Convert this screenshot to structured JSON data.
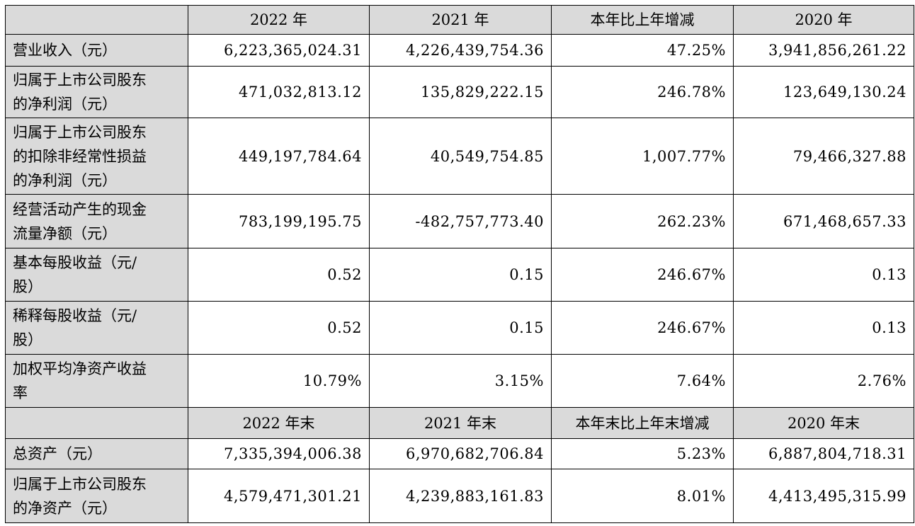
{
  "header1": [
    "2022 年",
    "2021 年",
    "本年比上年增减",
    "2020 年"
  ],
  "rows1": [
    {
      "label": "营业收入（元）",
      "values": [
        "6,223,365,024.31",
        "4,226,439,754.36",
        "47.25%",
        "3,941,856,261.22"
      ]
    },
    {
      "label": "归属于上市公司股东\n的净利润（元）",
      "values": [
        "471,032,813.12",
        "135,829,222.15",
        "246.78%",
        "123,649,130.24"
      ]
    },
    {
      "label": "归属于上市公司股东\n的扣除非经常性损益\n的净利润（元）",
      "values": [
        "449,197,784.64",
        "40,549,754.85",
        "1,007.77%",
        "79,466,327.88"
      ]
    },
    {
      "label": "经营活动产生的现金\n流量净额（元）",
      "values": [
        "783,199,195.75",
        "-482,757,773.40",
        "262.23%",
        "671,468,657.33"
      ]
    },
    {
      "label": "基本每股收益（元/\n股）",
      "values": [
        "0.52",
        "0.15",
        "246.67%",
        "0.13"
      ]
    },
    {
      "label": "稀释每股收益（元/\n股）",
      "values": [
        "0.52",
        "0.15",
        "246.67%",
        "0.13"
      ]
    },
    {
      "label": "加权平均净资产收益\n率",
      "values": [
        "10.79%",
        "3.15%",
        "7.64%",
        "2.76%"
      ]
    }
  ],
  "header2": [
    "2022 年末",
    "2021 年末",
    "本年末比上年末增减",
    "2020 年末"
  ],
  "rows2": [
    {
      "label": "总资产（元）",
      "values": [
        "7,335,394,006.38",
        "6,970,682,706.84",
        "5.23%",
        "6,887,804,718.31"
      ]
    },
    {
      "label": "归属于上市公司股东\n的净资产（元）",
      "values": [
        "4,579,471,301.21",
        "4,239,883,161.83",
        "8.01%",
        "4,413,495,315.99"
      ]
    }
  ]
}
